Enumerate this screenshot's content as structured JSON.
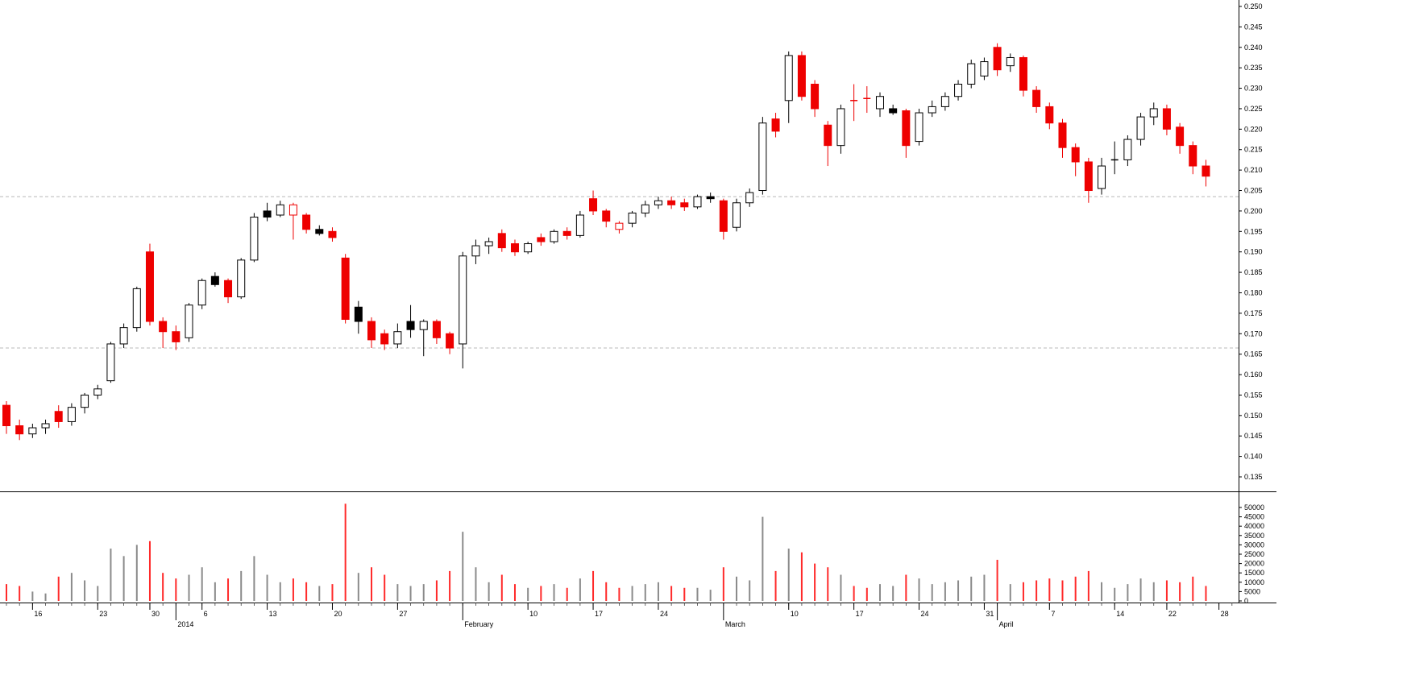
{
  "chart_data": {
    "type": "candlestick",
    "subtype": "price-pane-with-volume-pane",
    "title": "",
    "legend": "none",
    "grid": "two dashed horizontal support/resistance lines in price pane",
    "colors": {
      "background": "#ffffff",
      "up_body": "#ffffff",
      "up_border": "#000000",
      "down_body": "#ee0000",
      "neutral_body": "#000000",
      "volume_up": "#8a8a8a",
      "volume_down": "#ff2a2a",
      "dashed_grid": "#b8b8b8",
      "axis": "#000000"
    },
    "price_axis": {
      "side": "right",
      "min": 0.135,
      "max": 0.25,
      "step": 0.005,
      "labels": [
        "0.250",
        "0.245",
        "0.240",
        "0.235",
        "0.230",
        "0.225",
        "0.220",
        "0.215",
        "0.210",
        "0.205",
        "0.200",
        "0.195",
        "0.190",
        "0.185",
        "0.180",
        "0.175",
        "0.170",
        "0.165",
        "0.160",
        "0.155",
        "0.150",
        "0.145",
        "0.140",
        "0.135"
      ]
    },
    "volume_axis": {
      "side": "right",
      "min": 0,
      "max": 50000,
      "step": 5000,
      "labels": [
        "50000",
        "45000",
        "40000",
        "35000",
        "30000",
        "25000",
        "20000",
        "15000",
        "10000",
        "5000",
        "0"
      ]
    },
    "support_levels": [
      0.2035,
      0.1665
    ],
    "slots": 95,
    "x_axis": {
      "week_labels": [
        {
          "i": 2,
          "t": "16"
        },
        {
          "i": 7,
          "t": "23"
        },
        {
          "i": 11,
          "t": "30"
        },
        {
          "i": 15,
          "t": "6"
        },
        {
          "i": 20,
          "t": "13"
        },
        {
          "i": 25,
          "t": "20"
        },
        {
          "i": 30,
          "t": "27"
        },
        {
          "i": 40,
          "t": "10"
        },
        {
          "i": 45,
          "t": "17"
        },
        {
          "i": 50,
          "t": "24"
        },
        {
          "i": 60,
          "t": "10"
        },
        {
          "i": 65,
          "t": "17"
        },
        {
          "i": 70,
          "t": "24"
        },
        {
          "i": 75,
          "t": "31"
        },
        {
          "i": 80,
          "t": "7"
        },
        {
          "i": 85,
          "t": "14"
        },
        {
          "i": 89,
          "t": "22"
        },
        {
          "i": 93,
          "t": "28"
        }
      ],
      "month_labels": [
        {
          "i": 13,
          "t": "2014"
        },
        {
          "i": 35,
          "t": "February"
        },
        {
          "i": 55,
          "t": "March"
        },
        {
          "i": 76,
          "t": "April"
        }
      ]
    },
    "candles": [
      {
        "o": 0.1525,
        "h": 0.1535,
        "l": 0.1455,
        "c": 0.1475,
        "k": "r",
        "v": 9000
      },
      {
        "o": 0.1475,
        "h": 0.149,
        "l": 0.144,
        "c": 0.1455,
        "k": "r",
        "v": 8000
      },
      {
        "o": 0.1455,
        "h": 0.148,
        "l": 0.1445,
        "c": 0.147,
        "k": "w",
        "v": 5000
      },
      {
        "o": 0.147,
        "h": 0.149,
        "l": 0.1455,
        "c": 0.148,
        "k": "w",
        "v": 4000
      },
      {
        "o": 0.151,
        "h": 0.1525,
        "l": 0.147,
        "c": 0.1485,
        "k": "r",
        "v": 13000
      },
      {
        "o": 0.1485,
        "h": 0.153,
        "l": 0.1475,
        "c": 0.152,
        "k": "w",
        "v": 15000
      },
      {
        "o": 0.152,
        "h": 0.1555,
        "l": 0.1505,
        "c": 0.155,
        "k": "w",
        "v": 11000
      },
      {
        "o": 0.155,
        "h": 0.1575,
        "l": 0.154,
        "c": 0.1565,
        "k": "w",
        "v": 8000
      },
      {
        "o": 0.1585,
        "h": 0.168,
        "l": 0.158,
        "c": 0.1675,
        "k": "w",
        "v": 28000
      },
      {
        "o": 0.1675,
        "h": 0.1725,
        "l": 0.1665,
        "c": 0.1715,
        "k": "w",
        "v": 24000
      },
      {
        "o": 0.1715,
        "h": 0.1815,
        "l": 0.1705,
        "c": 0.181,
        "k": "w",
        "v": 30000
      },
      {
        "o": 0.19,
        "h": 0.192,
        "l": 0.172,
        "c": 0.173,
        "k": "r",
        "v": 32000
      },
      {
        "o": 0.173,
        "h": 0.174,
        "l": 0.1665,
        "c": 0.1705,
        "k": "r",
        "v": 15000
      },
      {
        "o": 0.1705,
        "h": 0.172,
        "l": 0.166,
        "c": 0.168,
        "k": "r",
        "v": 12000
      },
      {
        "o": 0.169,
        "h": 0.1775,
        "l": 0.168,
        "c": 0.177,
        "k": "w",
        "v": 14000
      },
      {
        "o": 0.177,
        "h": 0.1835,
        "l": 0.176,
        "c": 0.183,
        "k": "w",
        "v": 18000
      },
      {
        "o": 0.184,
        "h": 0.185,
        "l": 0.1815,
        "c": 0.182,
        "k": "k",
        "v": 10000
      },
      {
        "o": 0.183,
        "h": 0.1835,
        "l": 0.1775,
        "c": 0.179,
        "k": "r",
        "v": 12000
      },
      {
        "o": 0.179,
        "h": 0.1885,
        "l": 0.1785,
        "c": 0.188,
        "k": "w",
        "v": 16000
      },
      {
        "o": 0.188,
        "h": 0.1995,
        "l": 0.1875,
        "c": 0.1985,
        "k": "w",
        "v": 24000
      },
      {
        "o": 0.2,
        "h": 0.202,
        "l": 0.1975,
        "c": 0.1985,
        "k": "k",
        "v": 14000
      },
      {
        "o": 0.199,
        "h": 0.2025,
        "l": 0.1985,
        "c": 0.2015,
        "k": "w",
        "v": 10000
      },
      {
        "o": 0.2015,
        "h": 0.202,
        "l": 0.193,
        "c": 0.199,
        "k": "rh",
        "v": 12000
      },
      {
        "o": 0.199,
        "h": 0.1995,
        "l": 0.1945,
        "c": 0.1955,
        "k": "r",
        "v": 10000
      },
      {
        "o": 0.1955,
        "h": 0.1965,
        "l": 0.194,
        "c": 0.1945,
        "k": "k",
        "v": 8000
      },
      {
        "o": 0.195,
        "h": 0.196,
        "l": 0.1925,
        "c": 0.1935,
        "k": "r",
        "v": 9000
      },
      {
        "o": 0.1885,
        "h": 0.1895,
        "l": 0.1725,
        "c": 0.1735,
        "k": "r",
        "v": 52000
      },
      {
        "o": 0.1765,
        "h": 0.178,
        "l": 0.17,
        "c": 0.173,
        "k": "k",
        "v": 15000
      },
      {
        "o": 0.173,
        "h": 0.174,
        "l": 0.1665,
        "c": 0.1685,
        "k": "r",
        "v": 18000
      },
      {
        "o": 0.17,
        "h": 0.171,
        "l": 0.166,
        "c": 0.1675,
        "k": "r",
        "v": 14000
      },
      {
        "o": 0.1675,
        "h": 0.1725,
        "l": 0.1665,
        "c": 0.1705,
        "k": "w",
        "v": 9000
      },
      {
        "o": 0.173,
        "h": 0.177,
        "l": 0.169,
        "c": 0.171,
        "k": "k",
        "v": 8000
      },
      {
        "o": 0.171,
        "h": 0.1735,
        "l": 0.1645,
        "c": 0.173,
        "k": "w",
        "v": 9000
      },
      {
        "o": 0.173,
        "h": 0.1735,
        "l": 0.1675,
        "c": 0.169,
        "k": "r",
        "v": 11000
      },
      {
        "o": 0.17,
        "h": 0.1705,
        "l": 0.165,
        "c": 0.1665,
        "k": "r",
        "v": 16000
      },
      {
        "o": 0.1675,
        "h": 0.19,
        "l": 0.1615,
        "c": 0.189,
        "k": "w",
        "v": 37000
      },
      {
        "o": 0.189,
        "h": 0.193,
        "l": 0.187,
        "c": 0.1915,
        "k": "w",
        "v": 18000
      },
      {
        "o": 0.1915,
        "h": 0.1935,
        "l": 0.1895,
        "c": 0.1925,
        "k": "w",
        "v": 10000
      },
      {
        "o": 0.1945,
        "h": 0.1955,
        "l": 0.19,
        "c": 0.191,
        "k": "r",
        "v": 14000
      },
      {
        "o": 0.192,
        "h": 0.193,
        "l": 0.189,
        "c": 0.19,
        "k": "r",
        "v": 9000
      },
      {
        "o": 0.19,
        "h": 0.1925,
        "l": 0.1895,
        "c": 0.192,
        "k": "w",
        "v": 7000
      },
      {
        "o": 0.1935,
        "h": 0.1945,
        "l": 0.1915,
        "c": 0.1925,
        "k": "r",
        "v": 8000
      },
      {
        "o": 0.1925,
        "h": 0.1955,
        "l": 0.192,
        "c": 0.195,
        "k": "w",
        "v": 9000
      },
      {
        "o": 0.195,
        "h": 0.196,
        "l": 0.193,
        "c": 0.194,
        "k": "r",
        "v": 7000
      },
      {
        "o": 0.194,
        "h": 0.2,
        "l": 0.1935,
        "c": 0.199,
        "k": "w",
        "v": 12000
      },
      {
        "o": 0.203,
        "h": 0.205,
        "l": 0.199,
        "c": 0.2,
        "k": "r",
        "v": 16000
      },
      {
        "o": 0.2,
        "h": 0.2005,
        "l": 0.196,
        "c": 0.1975,
        "k": "r",
        "v": 10000
      },
      {
        "o": 0.1955,
        "h": 0.1975,
        "l": 0.1945,
        "c": 0.197,
        "k": "rh",
        "v": 7000
      },
      {
        "o": 0.197,
        "h": 0.2,
        "l": 0.196,
        "c": 0.1995,
        "k": "w",
        "v": 8000
      },
      {
        "o": 0.1995,
        "h": 0.2025,
        "l": 0.1985,
        "c": 0.2015,
        "k": "w",
        "v": 9000
      },
      {
        "o": 0.2015,
        "h": 0.2035,
        "l": 0.2005,
        "c": 0.2025,
        "k": "w",
        "v": 10000
      },
      {
        "o": 0.2025,
        "h": 0.2035,
        "l": 0.2005,
        "c": 0.2015,
        "k": "r",
        "v": 8000
      },
      {
        "o": 0.202,
        "h": 0.203,
        "l": 0.2,
        "c": 0.201,
        "k": "r",
        "v": 7000
      },
      {
        "o": 0.201,
        "h": 0.204,
        "l": 0.2005,
        "c": 0.2035,
        "k": "w",
        "v": 7000
      },
      {
        "o": 0.2035,
        "h": 0.2045,
        "l": 0.202,
        "c": 0.203,
        "k": "k",
        "v": 6000
      },
      {
        "o": 0.2025,
        "h": 0.203,
        "l": 0.193,
        "c": 0.195,
        "k": "r",
        "v": 18000
      },
      {
        "o": 0.196,
        "h": 0.203,
        "l": 0.195,
        "c": 0.202,
        "k": "w",
        "v": 13000
      },
      {
        "o": 0.202,
        "h": 0.2055,
        "l": 0.201,
        "c": 0.2045,
        "k": "w",
        "v": 11000
      },
      {
        "o": 0.205,
        "h": 0.223,
        "l": 0.204,
        "c": 0.2215,
        "k": "w",
        "v": 45000
      },
      {
        "o": 0.2225,
        "h": 0.224,
        "l": 0.218,
        "c": 0.2195,
        "k": "r",
        "v": 16000
      },
      {
        "o": 0.227,
        "h": 0.239,
        "l": 0.2215,
        "c": 0.238,
        "k": "w",
        "v": 28000
      },
      {
        "o": 0.238,
        "h": 0.239,
        "l": 0.227,
        "c": 0.228,
        "k": "r",
        "v": 26000
      },
      {
        "o": 0.231,
        "h": 0.232,
        "l": 0.223,
        "c": 0.225,
        "k": "r",
        "v": 20000
      },
      {
        "o": 0.221,
        "h": 0.222,
        "l": 0.211,
        "c": 0.216,
        "k": "r",
        "v": 18000
      },
      {
        "o": 0.216,
        "h": 0.226,
        "l": 0.214,
        "c": 0.225,
        "k": "w",
        "v": 14000
      },
      {
        "o": 0.227,
        "h": 0.231,
        "l": 0.222,
        "c": 0.227,
        "k": "rx",
        "v": 8000
      },
      {
        "o": 0.2275,
        "h": 0.2305,
        "l": 0.224,
        "c": 0.2275,
        "k": "rx",
        "v": 7000
      },
      {
        "o": 0.225,
        "h": 0.229,
        "l": 0.223,
        "c": 0.228,
        "k": "w",
        "v": 9000
      },
      {
        "o": 0.225,
        "h": 0.226,
        "l": 0.2235,
        "c": 0.224,
        "k": "k",
        "v": 8000
      },
      {
        "o": 0.2245,
        "h": 0.225,
        "l": 0.213,
        "c": 0.216,
        "k": "r",
        "v": 14000
      },
      {
        "o": 0.217,
        "h": 0.225,
        "l": 0.216,
        "c": 0.224,
        "k": "w",
        "v": 12000
      },
      {
        "o": 0.224,
        "h": 0.227,
        "l": 0.223,
        "c": 0.2255,
        "k": "w",
        "v": 9000
      },
      {
        "o": 0.2255,
        "h": 0.229,
        "l": 0.2245,
        "c": 0.228,
        "k": "w",
        "v": 10000
      },
      {
        "o": 0.228,
        "h": 0.232,
        "l": 0.227,
        "c": 0.231,
        "k": "w",
        "v": 11000
      },
      {
        "o": 0.231,
        "h": 0.237,
        "l": 0.23,
        "c": 0.236,
        "k": "w",
        "v": 13000
      },
      {
        "o": 0.233,
        "h": 0.2375,
        "l": 0.232,
        "c": 0.2365,
        "k": "w",
        "v": 14000
      },
      {
        "o": 0.24,
        "h": 0.241,
        "l": 0.233,
        "c": 0.2345,
        "k": "r",
        "v": 22000
      },
      {
        "o": 0.2355,
        "h": 0.2385,
        "l": 0.234,
        "c": 0.2375,
        "k": "w",
        "v": 9000
      },
      {
        "o": 0.2375,
        "h": 0.238,
        "l": 0.228,
        "c": 0.2295,
        "k": "r",
        "v": 10000
      },
      {
        "o": 0.2295,
        "h": 0.2305,
        "l": 0.224,
        "c": 0.2255,
        "k": "r",
        "v": 11000
      },
      {
        "o": 0.2255,
        "h": 0.2265,
        "l": 0.22,
        "c": 0.2215,
        "k": "r",
        "v": 12000
      },
      {
        "o": 0.2215,
        "h": 0.2225,
        "l": 0.213,
        "c": 0.2155,
        "k": "r",
        "v": 11000
      },
      {
        "o": 0.2155,
        "h": 0.2165,
        "l": 0.2085,
        "c": 0.212,
        "k": "r",
        "v": 13000
      },
      {
        "o": 0.212,
        "h": 0.213,
        "l": 0.202,
        "c": 0.205,
        "k": "r",
        "v": 16000
      },
      {
        "o": 0.2055,
        "h": 0.213,
        "l": 0.204,
        "c": 0.211,
        "k": "w",
        "v": 10000
      },
      {
        "o": 0.2125,
        "h": 0.217,
        "l": 0.209,
        "c": 0.2125,
        "k": "kx",
        "v": 7000
      },
      {
        "o": 0.2125,
        "h": 0.2185,
        "l": 0.211,
        "c": 0.2175,
        "k": "w",
        "v": 9000
      },
      {
        "o": 0.2175,
        "h": 0.224,
        "l": 0.216,
        "c": 0.223,
        "k": "w",
        "v": 12000
      },
      {
        "o": 0.223,
        "h": 0.2265,
        "l": 0.221,
        "c": 0.225,
        "k": "w",
        "v": 10000
      },
      {
        "o": 0.225,
        "h": 0.226,
        "l": 0.2185,
        "c": 0.22,
        "k": "r",
        "v": 11000
      },
      {
        "o": 0.2205,
        "h": 0.2215,
        "l": 0.214,
        "c": 0.216,
        "k": "r",
        "v": 10000
      },
      {
        "o": 0.216,
        "h": 0.217,
        "l": 0.209,
        "c": 0.211,
        "k": "r",
        "v": 13000
      },
      {
        "o": 0.211,
        "h": 0.2125,
        "l": 0.206,
        "c": 0.2085,
        "k": "r",
        "v": 8000
      }
    ]
  }
}
